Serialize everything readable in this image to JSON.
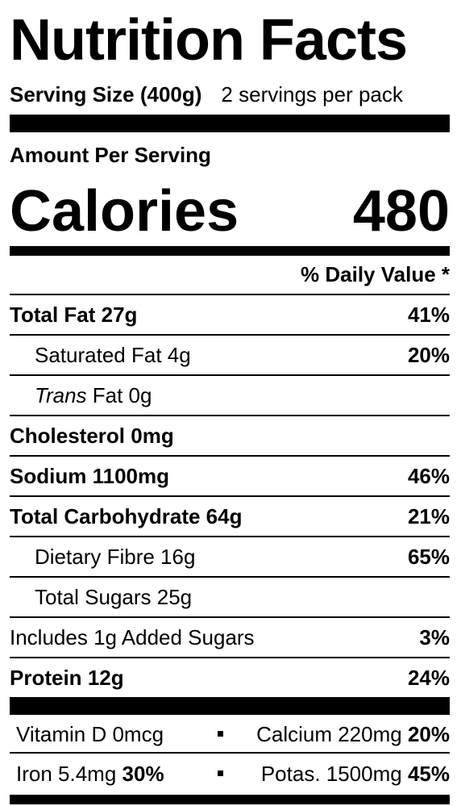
{
  "title": "Nutrition Facts",
  "serving": {
    "size_label": "Serving Size (400g)",
    "per_pack": "2 servings per pack"
  },
  "amount_per_serving": "Amount Per Serving",
  "calories": {
    "label": "Calories",
    "value": "480"
  },
  "daily_value_header": "% Daily Value *",
  "nutrients": {
    "total_fat": {
      "name": "Total Fat",
      "amount": "27g",
      "dv": "41%"
    },
    "saturated_fat": {
      "label": "Saturated Fat 4g",
      "dv": "20%"
    },
    "trans_fat": {
      "name": "Trans",
      "rest": "Fat 0g"
    },
    "cholesterol": {
      "name": "Cholesterol",
      "amount": "0mg"
    },
    "sodium": {
      "name": "Sodium",
      "amount": "1100mg",
      "dv": "46%"
    },
    "total_carbohydrate": {
      "name": "Total Carbohydrate",
      "amount": "64g",
      "dv": "21%"
    },
    "dietary_fibre": {
      "label": "Dietary Fibre 16g",
      "dv": "65%"
    },
    "total_sugars": {
      "label": "Total Sugars 25g"
    },
    "added_sugars": {
      "label": "Includes 1g Added Sugars",
      "dv": "3%"
    },
    "protein": {
      "name": "Protein",
      "amount": "12g",
      "dv": "24%"
    }
  },
  "vitamins": {
    "vitamin_d": {
      "label": "Vitamin D  0mcg"
    },
    "calcium": {
      "label": "Calcium  220mg",
      "dv": "20%"
    },
    "iron": {
      "label": "Iron  5.4mg",
      "dv": "30%"
    },
    "potassium": {
      "label": "Potas.  1500mg",
      "dv": "45%"
    }
  }
}
